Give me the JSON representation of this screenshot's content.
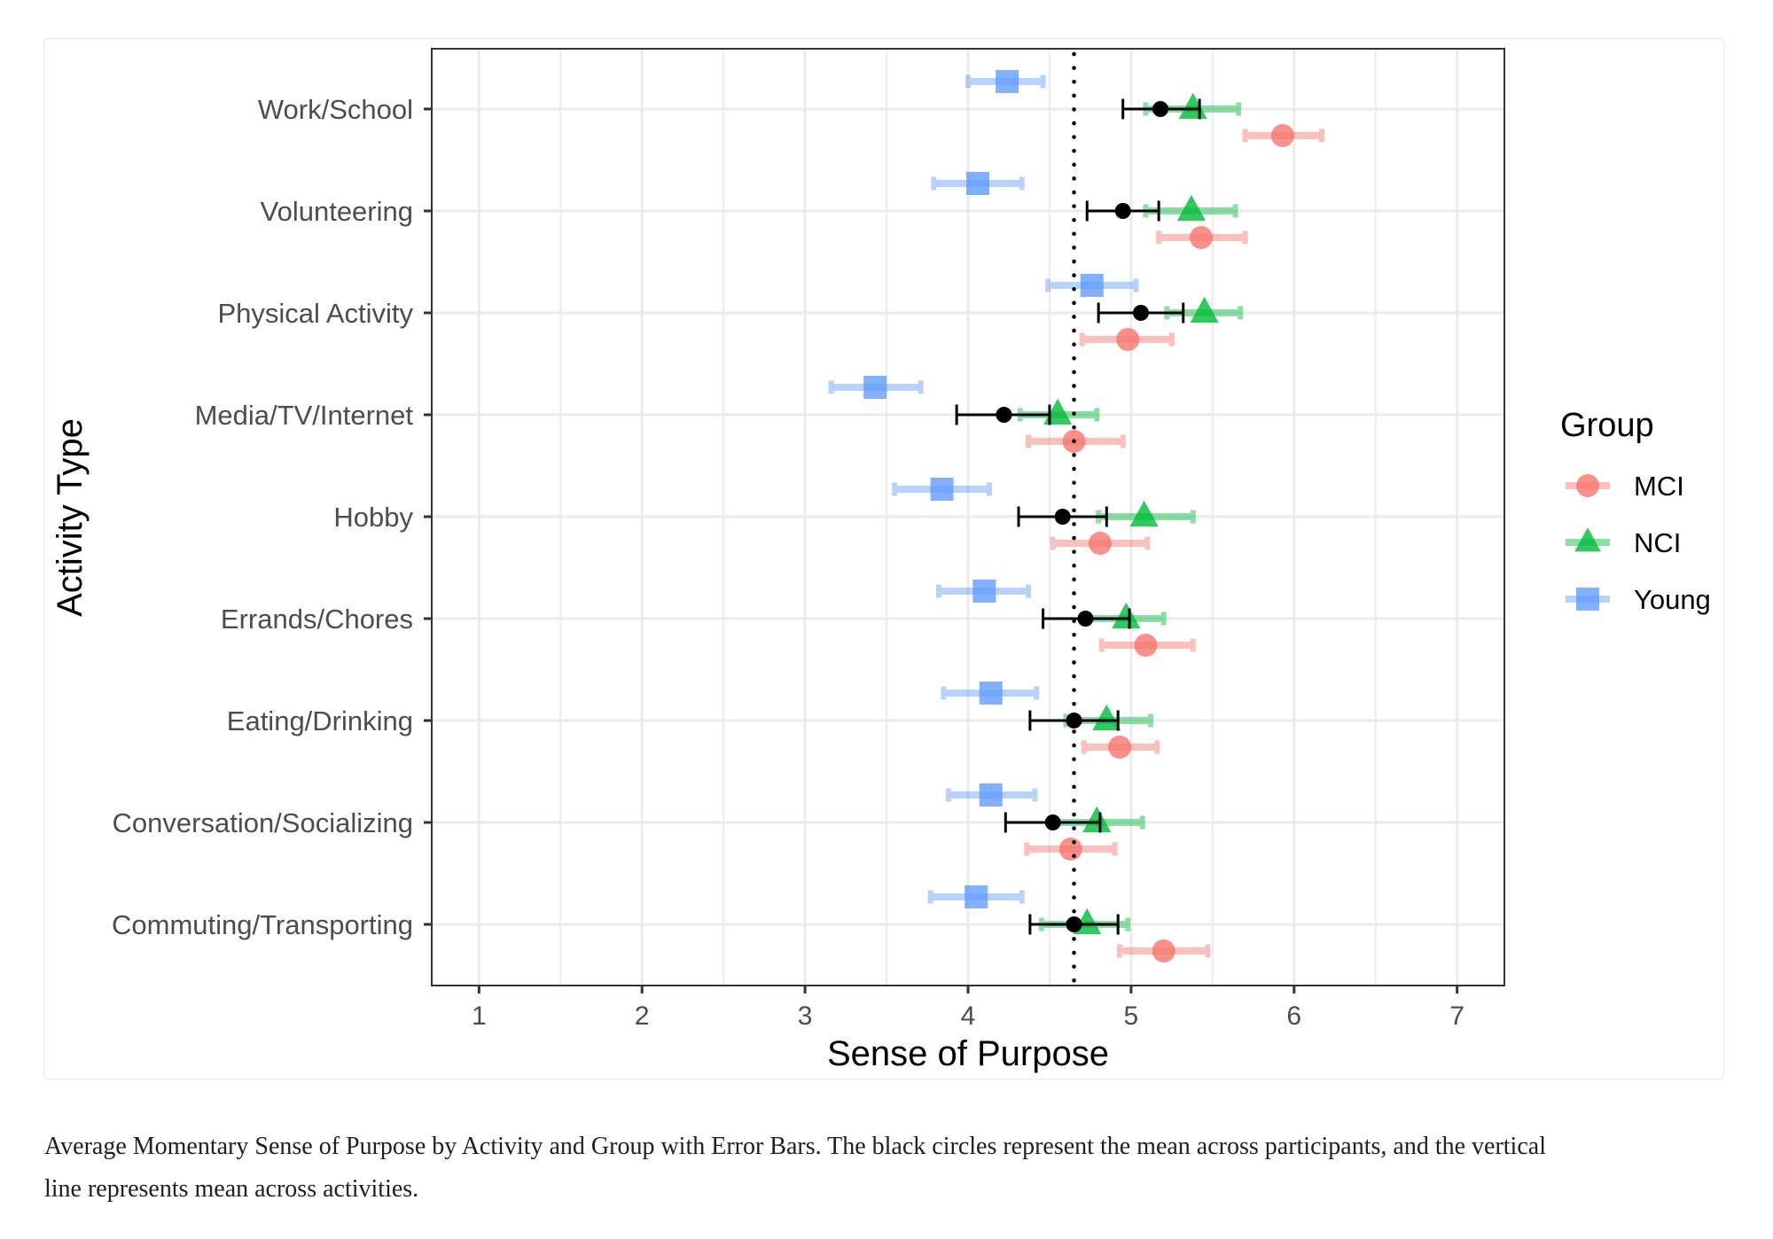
{
  "chart_data": {
    "type": "scatter",
    "subtype": "dot-plot with horizontal error bars",
    "xlabel": "Sense of Purpose",
    "ylabel": "Activity Type",
    "xlim": [
      0.71,
      7.29
    ],
    "xticks": [
      1,
      2,
      3,
      4,
      5,
      6,
      7
    ],
    "xtick_labels": [
      "1",
      "2",
      "3",
      "4",
      "5",
      "6",
      "7"
    ],
    "grid": true,
    "categories": [
      "Work/School",
      "Volunteering",
      "Physical Activity",
      "Media/TV/Internet",
      "Hobby",
      "Errands/Chores",
      "Eating/Drinking",
      "Conversation/Socializing",
      "Commuting/Transporting"
    ],
    "legend": {
      "title": "Group",
      "placement": "right",
      "entries": [
        "MCI",
        "NCI",
        "Young"
      ]
    },
    "series": [
      {
        "name": "MCI",
        "shape": "circle",
        "color": "#F8766D",
        "values": [
          5.93,
          5.43,
          4.98,
          4.65,
          4.81,
          5.09,
          4.93,
          4.63,
          5.2
        ],
        "lower": [
          5.7,
          5.17,
          4.7,
          4.37,
          4.52,
          4.82,
          4.71,
          4.36,
          4.93
        ],
        "upper": [
          6.17,
          5.7,
          5.25,
          4.95,
          5.1,
          5.38,
          5.16,
          4.9,
          5.47
        ]
      },
      {
        "name": "NCI",
        "shape": "triangle",
        "color": "#00BA38",
        "values": [
          5.38,
          5.37,
          5.45,
          4.55,
          5.08,
          4.97,
          4.85,
          4.79,
          4.73
        ],
        "lower": [
          5.09,
          5.09,
          5.22,
          4.32,
          4.8,
          4.74,
          4.6,
          4.52,
          4.45
        ],
        "upper": [
          5.66,
          5.64,
          5.67,
          4.79,
          5.38,
          5.2,
          5.12,
          5.07,
          4.98
        ]
      },
      {
        "name": "Young",
        "shape": "square",
        "color": "#619CFF",
        "values": [
          4.24,
          4.06,
          4.76,
          3.43,
          3.84,
          4.1,
          4.14,
          4.14,
          4.05
        ],
        "lower": [
          4.0,
          3.79,
          4.49,
          3.16,
          3.55,
          3.82,
          3.85,
          3.88,
          3.77
        ],
        "upper": [
          4.46,
          4.33,
          5.03,
          3.71,
          4.13,
          4.37,
          4.42,
          4.41,
          4.33
        ]
      }
    ],
    "overall_mean": {
      "name": "Mean across participants",
      "shape": "circle",
      "color": "#000000",
      "values": [
        5.18,
        4.95,
        5.06,
        4.22,
        4.58,
        4.72,
        4.65,
        4.52,
        4.65
      ],
      "lower": [
        4.95,
        4.73,
        4.8,
        3.93,
        4.31,
        4.46,
        4.38,
        4.23,
        4.38
      ],
      "upper": [
        5.42,
        5.17,
        5.32,
        4.5,
        4.85,
        4.99,
        4.92,
        4.81,
        4.92
      ]
    },
    "reference_line": {
      "orientation": "vertical",
      "style": "dotted",
      "value": 4.65,
      "color": "#000000"
    }
  },
  "caption": {
    "line1": "Average Momentary Sense of Purpose by Activity and Group with Error Bars. The black circles represent the mean across participants, and the vertical",
    "line2": "line represents mean across activities."
  },
  "colors": {
    "grid": "#ebebeb",
    "panel_border": "#333333",
    "tick_text": "#4d4d4d",
    "card_border": "#e6e6e6"
  }
}
